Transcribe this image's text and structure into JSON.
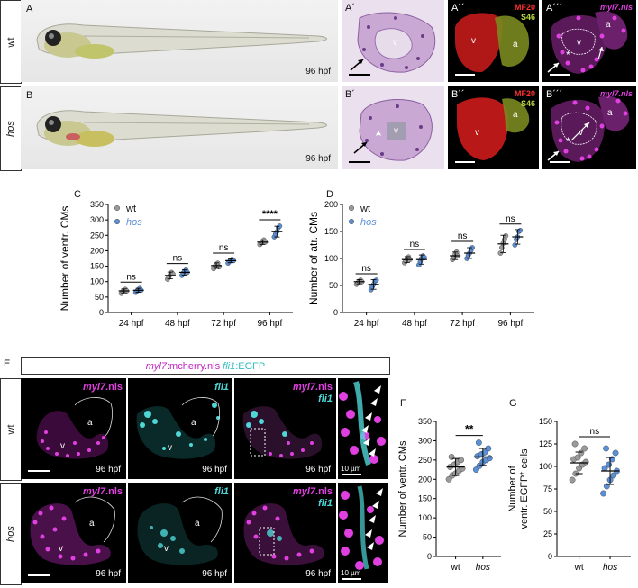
{
  "rows": {
    "wt": "wt",
    "hos": "hos"
  },
  "panels": {
    "A": "A",
    "A1": "A´",
    "A2": "A´´",
    "A3": "A´´´",
    "B": "B",
    "B1": "B´",
    "B2": "B´´",
    "B3": "B´´´",
    "C": "C",
    "D": "D",
    "E": "E",
    "F": "F",
    "G": "G"
  },
  "labels": {
    "hpf96": "96 hpf",
    "mf20": "MF20",
    "s46": "S46",
    "myl7nls": "myl7.nls",
    "myl7": "myl7",
    "nls": ".nls",
    "fli1": "fli1",
    "v": "v",
    "a": "a",
    "um10": "10 µm",
    "asterisk": "*"
  },
  "e_title": {
    "p1": "myl7",
    "p2": ":mcherry.nls ",
    "p3": "fli1",
    "p4": ":EGFP"
  },
  "colors": {
    "wt": "#9a9a9a",
    "hos": "#5b8fd6",
    "magenta": "#e040e0",
    "cyan": "#4fd6d6",
    "red": "#e02020",
    "green": "#b8d840"
  },
  "chart_data": [
    {
      "id": "C",
      "type": "scatter",
      "ylabel": "Number of ventr. CMs",
      "categories": [
        "24 hpf",
        "48 hpf",
        "72 hpf",
        "96 hpf"
      ],
      "ylim": [
        0,
        350
      ],
      "yticks": [
        0,
        50,
        100,
        150,
        200,
        250,
        300,
        350
      ],
      "legend": {
        "placement": "top-left",
        "items": [
          "wt",
          "hos"
        ]
      },
      "series": [
        {
          "name": "wt",
          "mean": [
            70,
            120,
            152,
            228
          ],
          "points": [
            [
              62,
              68,
              72,
              75,
              70
            ],
            [
              108,
              115,
              122,
              130,
              125
            ],
            [
              142,
              150,
              155,
              160,
              148
            ],
            [
              220,
              225,
              230,
              235,
              228
            ]
          ]
        },
        {
          "name": "hos",
          "mean": [
            72,
            130,
            168,
            262
          ],
          "points": [
            [
              65,
              70,
              74,
              78,
              72
            ],
            [
              120,
              128,
              133,
              138,
              130
            ],
            [
              160,
              165,
              170,
              172,
              168
            ],
            [
              245,
              255,
              262,
              275,
              280
            ]
          ]
        }
      ],
      "significance": [
        "ns",
        "ns",
        "ns",
        "****"
      ]
    },
    {
      "id": "D",
      "type": "scatter",
      "ylabel": "Number of atr. CMs",
      "categories": [
        "24 hpf",
        "48 hpf",
        "72 hpf",
        "96 hpf"
      ],
      "ylim": [
        0,
        200
      ],
      "yticks": [
        0,
        50,
        100,
        150,
        200
      ],
      "legend": {
        "placement": "top-left",
        "items": [
          "wt",
          "hos"
        ]
      },
      "series": [
        {
          "name": "wt",
          "mean": [
            57,
            98,
            105,
            127
          ],
          "points": [
            [
              52,
              55,
              58,
              60,
              57
            ],
            [
              92,
              95,
              100,
              103,
              98
            ],
            [
              98,
              102,
              108,
              112,
              105
            ],
            [
              110,
              120,
              128,
              135,
              142
            ]
          ]
        },
        {
          "name": "hos",
          "mean": [
            52,
            98,
            110,
            140
          ],
          "points": [
            [
              42,
              48,
              52,
              58,
              60
            ],
            [
              88,
              94,
              100,
              105,
              102
            ],
            [
              100,
              106,
              110,
              115,
              120
            ],
            [
              125,
              135,
              140,
              150,
              152
            ]
          ]
        }
      ],
      "significance": [
        "ns",
        "ns",
        "ns",
        "ns"
      ]
    },
    {
      "id": "F",
      "type": "scatter",
      "ylabel": "Number of ventr. CMs",
      "categories": [
        "wt",
        "hos"
      ],
      "ylim": [
        0,
        350
      ],
      "yticks": [
        0,
        50,
        100,
        150,
        200,
        250,
        300,
        350
      ],
      "series": [
        {
          "name": "wt",
          "mean": 232,
          "sd": 22,
          "points": [
            200,
            210,
            215,
            222,
            228,
            232,
            238,
            245,
            250,
            258
          ]
        },
        {
          "name": "hos",
          "mean": 258,
          "sd": 22,
          "points": [
            225,
            235,
            245,
            250,
            255,
            260,
            265,
            270,
            280,
            295
          ]
        }
      ],
      "significance": "**"
    },
    {
      "id": "G",
      "type": "scatter",
      "ylabel": "Number of ventr. EGFP⁺ cells",
      "ylabel_parts": [
        "Number of",
        "ventr. EGFP",
        "+",
        " cells"
      ],
      "categories": [
        "wt",
        "hos"
      ],
      "ylim": [
        0,
        150
      ],
      "yticks": [
        0,
        25,
        50,
        75,
        100,
        125,
        150
      ],
      "series": [
        {
          "name": "wt",
          "mean": 104,
          "sd": 12,
          "points": [
            85,
            92,
            98,
            102,
            105,
            108,
            110,
            115,
            120,
            125
          ]
        },
        {
          "name": "hos",
          "mean": 95,
          "sd": 15,
          "points": [
            70,
            78,
            85,
            90,
            95,
            98,
            102,
            108,
            115,
            120
          ]
        }
      ],
      "significance": "ns"
    }
  ]
}
